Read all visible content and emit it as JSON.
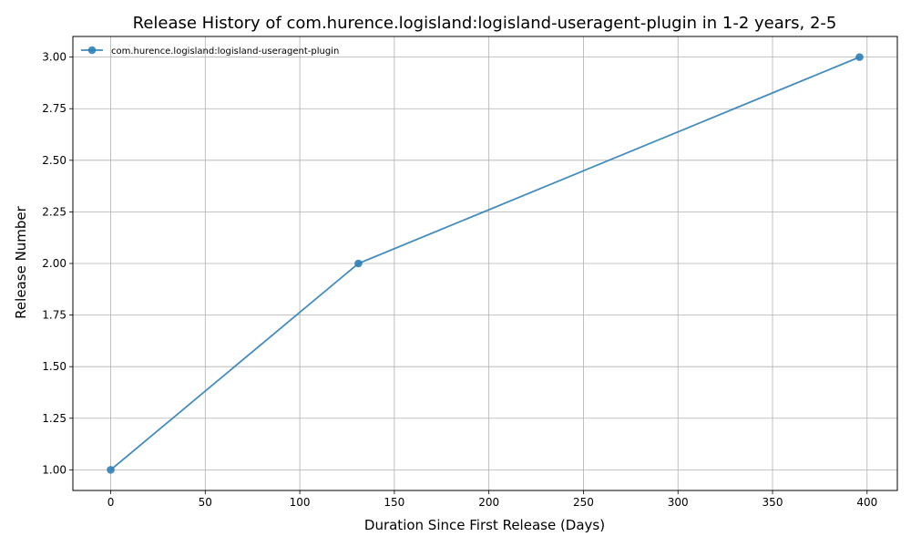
{
  "chart_data": {
    "type": "line",
    "title": "Release History of com.hurence.logisland:logisland-useragent-plugin in 1-2 years, 2-5",
    "xlabel": "Duration Since First Release (Days)",
    "ylabel": "Release Number",
    "xlim": [
      -20,
      416
    ],
    "ylim": [
      0.9,
      3.1
    ],
    "xticks": [
      0,
      50,
      100,
      150,
      200,
      250,
      300,
      350,
      400
    ],
    "xtick_labels": [
      "0",
      "50",
      "100",
      "150",
      "200",
      "250",
      "300",
      "350",
      "400"
    ],
    "yticks": [
      1.0,
      1.25,
      1.5,
      1.75,
      2.0,
      2.25,
      2.5,
      2.75,
      3.0
    ],
    "ytick_labels": [
      "1.00",
      "1.25",
      "1.50",
      "1.75",
      "2.00",
      "2.25",
      "2.50",
      "2.75",
      "3.00"
    ],
    "grid": true,
    "legend_position": "top-left",
    "series": [
      {
        "name": "com.hurence.logisland:logisland-useragent-plugin",
        "color": "#2f7fb8",
        "marker": "circle",
        "x": [
          0,
          131,
          396
        ],
        "y": [
          1,
          2,
          3
        ]
      }
    ]
  }
}
